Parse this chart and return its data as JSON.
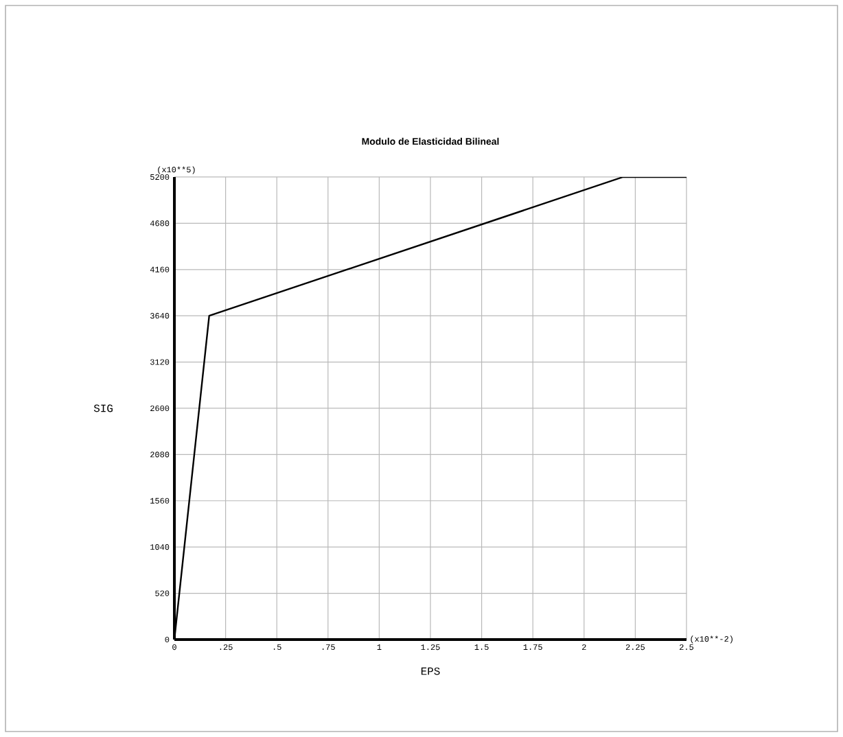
{
  "chart_data": {
    "type": "line",
    "title": "Modulo de Elasticidad Bilineal",
    "xlabel": "EPS",
    "ylabel": "SIG",
    "annotations": [
      "(x10**5)",
      "(x10**-2)"
    ],
    "x": [
      0,
      0.17,
      2.19,
      2.5
    ],
    "series": [
      {
        "color": "#000000",
        "values": [
          0,
          3640,
          5200,
          5200
        ]
      }
    ],
    "xlim": [
      0,
      2.5
    ],
    "ylim": [
      0,
      5200
    ],
    "xticks": [
      0,
      {
        "value": 0.25,
        "label": ".25"
      },
      {
        "value": 0.5,
        "label": ".5"
      },
      {
        "value": 0.75,
        "label": ".75"
      },
      1,
      1.25,
      1.5,
      1.75,
      2,
      2.25,
      2.5
    ],
    "yticks": [
      0,
      520,
      1040,
      1560,
      2080,
      2600,
      3120,
      3640,
      4160,
      4680,
      5200
    ],
    "grid": true,
    "marker": "none",
    "line_style": "solid"
  }
}
